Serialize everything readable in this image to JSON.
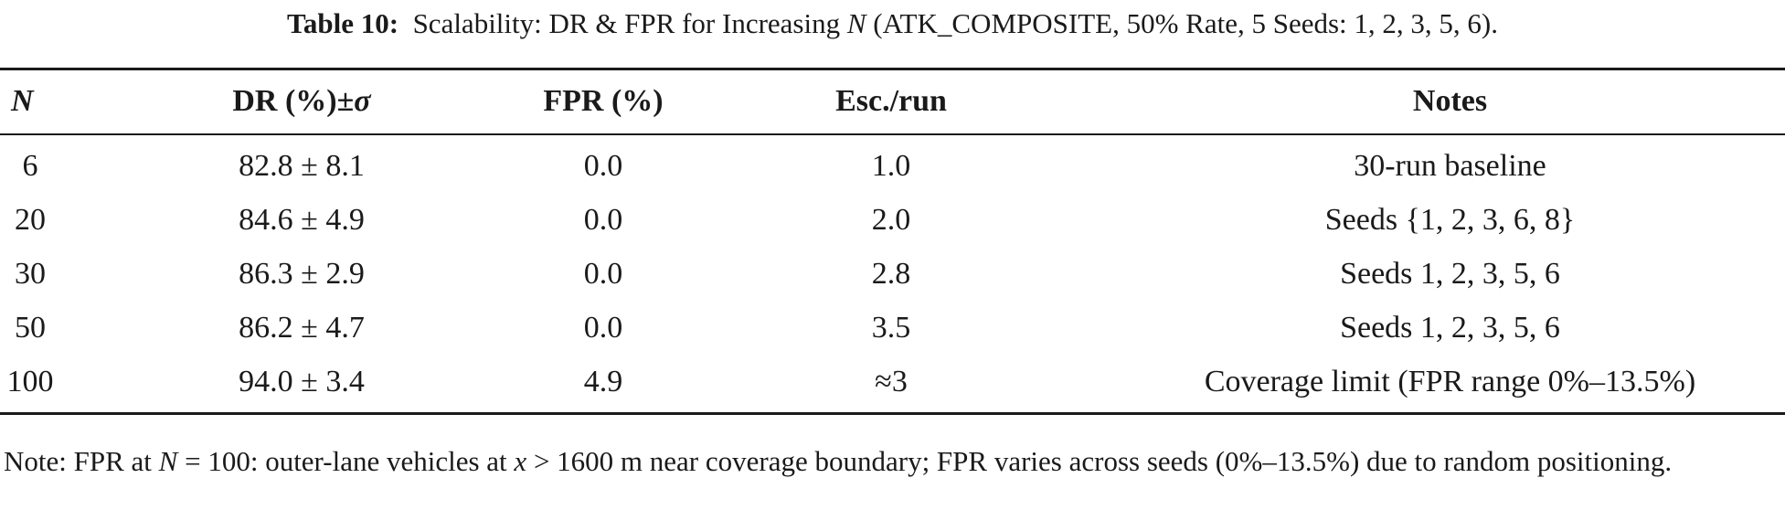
{
  "caption": {
    "label": "Table 10:",
    "text_before_n": "Scalability: DR & FPR for Increasing",
    "n_symbol": "N",
    "text_after_n": "(ATK_COMPOSITE, 50% Rate, 5 Seeds: 1, 2, 3, 5, 6)."
  },
  "table": {
    "headers": {
      "n": "N",
      "dr": "DR (%)±",
      "dr_sigma": "σ",
      "fpr": "FPR (%)",
      "esc": "Esc./run",
      "notes": "Notes"
    },
    "rows": [
      {
        "n": "6",
        "dr": "82.8 ± 8.1",
        "fpr": "0.0",
        "esc": "1.0",
        "notes": "30-run baseline"
      },
      {
        "n": "20",
        "dr": "84.6 ± 4.9",
        "fpr": "0.0",
        "esc": "2.0",
        "notes": "Seeds {1, 2, 3, 6, 8}"
      },
      {
        "n": "30",
        "dr": "86.3 ± 2.9",
        "fpr": "0.0",
        "esc": "2.8",
        "notes": "Seeds 1, 2, 3, 5, 6"
      },
      {
        "n": "50",
        "dr": "86.2 ± 4.7",
        "fpr": "0.0",
        "esc": "3.5",
        "notes": "Seeds 1, 2, 3, 5, 6"
      },
      {
        "n": "100",
        "dr": "94.0 ± 3.4",
        "fpr": "4.9",
        "esc": "≈3",
        "notes": "Coverage limit (FPR range 0%–13.5%)"
      }
    ]
  },
  "note": {
    "part1": "Note: FPR at",
    "n_symbol": "N",
    "part2": "= 100: outer-lane vehicles at",
    "x_symbol": "x",
    "part3": "> 1600 m near coverage boundary; FPR varies across seeds (0%–13.5%) due to random positioning."
  }
}
